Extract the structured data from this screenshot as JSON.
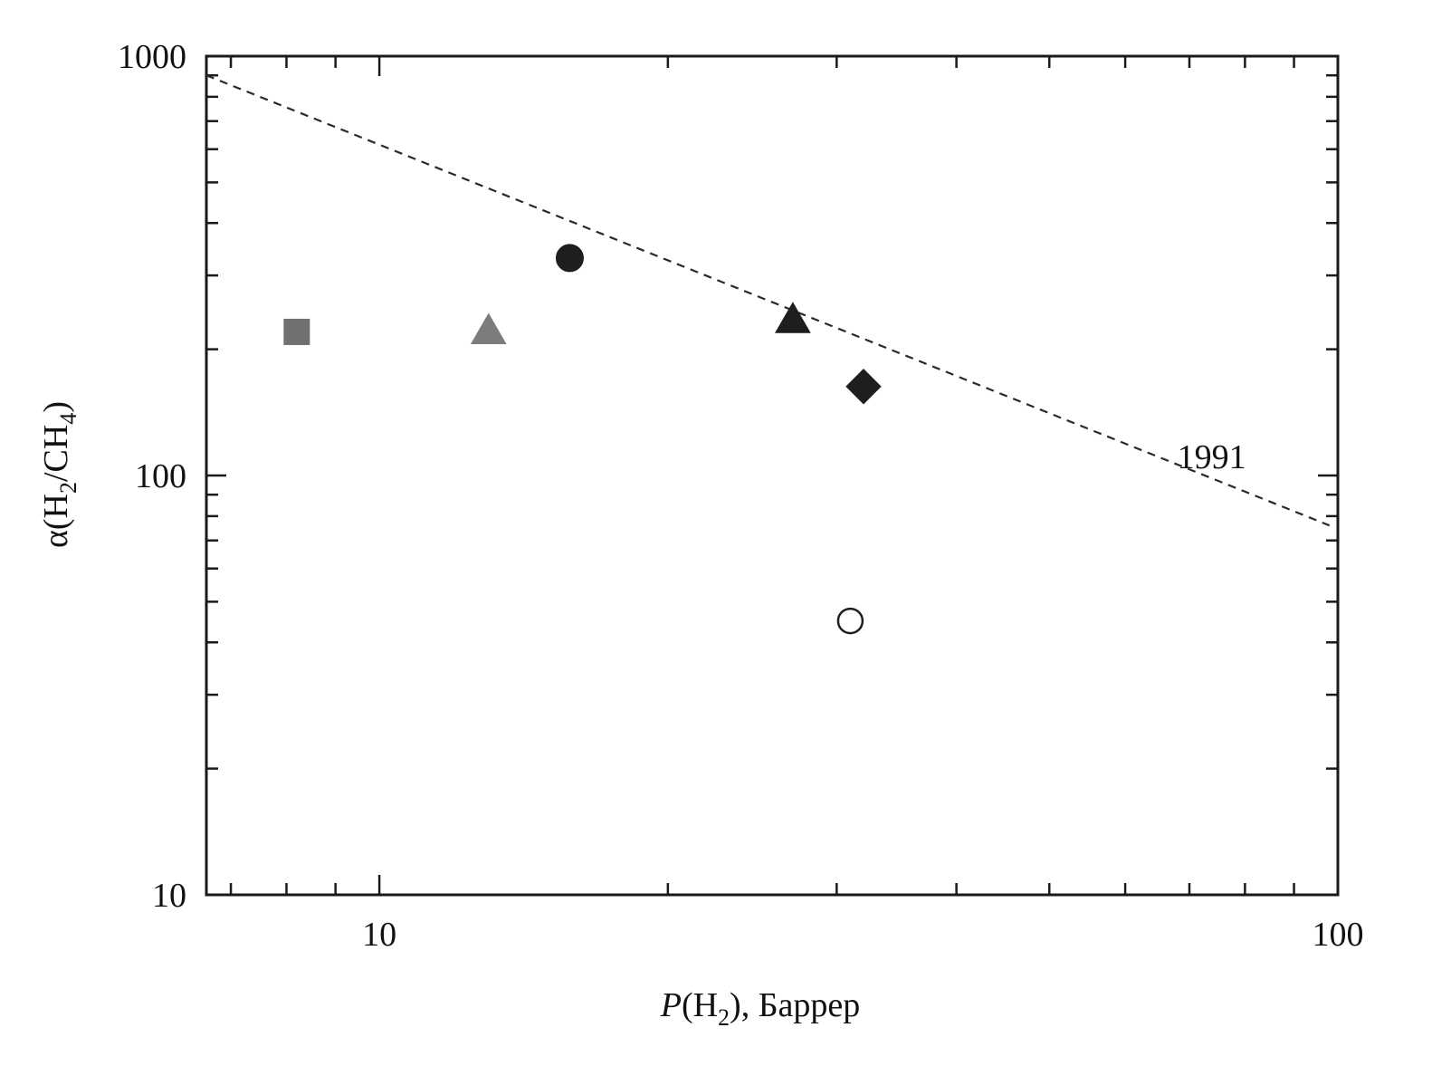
{
  "chart_data": {
    "type": "scatter",
    "xscale": "log",
    "yscale": "log",
    "xlim": [
      6.6,
      100
    ],
    "ylim": [
      10,
      1000
    ],
    "x_ticks": [
      "10",
      "100"
    ],
    "y_ticks": [
      "10",
      "100",
      "1000"
    ],
    "xlabel": {
      "italic": "P",
      "open": "(H",
      "sub": "2",
      "close": "), Баррер"
    },
    "ylabel": {
      "a": "α(H",
      "sub1": "2",
      "b": "/CH",
      "sub2": "4",
      "c": ")"
    },
    "series": [
      {
        "marker": "square",
        "color": "#707070",
        "filled": true,
        "x": 8.2,
        "y": 220
      },
      {
        "marker": "triangle",
        "color": "#7c7c7c",
        "filled": true,
        "x": 13.0,
        "y": 221
      },
      {
        "marker": "circle",
        "color": "#1e1e1e",
        "filled": true,
        "x": 15.8,
        "y": 330
      },
      {
        "marker": "triangle",
        "color": "#1e1e1e",
        "filled": true,
        "x": 27.0,
        "y": 235
      },
      {
        "marker": "diamond",
        "color": "#1e1e1e",
        "filled": true,
        "x": 32.0,
        "y": 163
      },
      {
        "marker": "circle",
        "color": "#1e1e1e",
        "filled": false,
        "x": 31.0,
        "y": 45
      }
    ],
    "bound_line": {
      "label": "1991",
      "style": "dashed",
      "x": [
        6.6,
        98
      ],
      "y": [
        900,
        76
      ]
    },
    "grid": false
  }
}
